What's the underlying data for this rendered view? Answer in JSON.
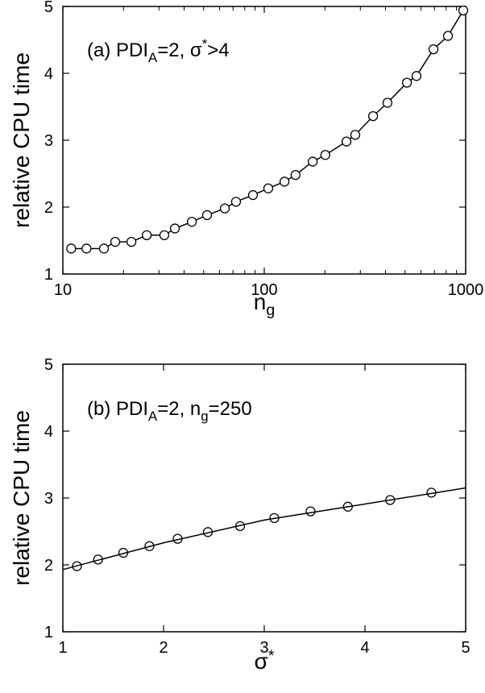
{
  "chart_data": [
    {
      "type": "line",
      "xscale": "log",
      "annotation": [
        {
          "text": "(a)  PDI"
        },
        {
          "text": "A",
          "style": "sub"
        },
        {
          "text": "=2,  σ"
        },
        {
          "text": "*",
          "style": "sup"
        },
        {
          "text": ">4"
        }
      ],
      "xlabel": [
        {
          "text": "n"
        },
        {
          "text": "g",
          "style": "sub"
        }
      ],
      "ylabel": "relative CPU time",
      "xlim": [
        10,
        1000
      ],
      "xticks": [
        10,
        100,
        1000
      ],
      "xminorticks": [
        20,
        30,
        40,
        50,
        60,
        70,
        80,
        90,
        200,
        300,
        400,
        500,
        600,
        700,
        800,
        900
      ],
      "ylim": [
        1,
        5
      ],
      "yticks": [
        1,
        2,
        3,
        4,
        5
      ],
      "series": [
        {
          "color": "#000000",
          "marker": "circle",
          "line": true,
          "x": [
            11,
            13.1,
            16,
            18.2,
            21.9,
            26.1,
            31.9,
            36,
            43.7,
            52,
            63.7,
            72.4,
            87.9,
            104.7,
            126,
            143,
            174,
            201,
            256,
            283,
            347,
            409,
            511,
            570,
            692,
            817,
            973
          ],
          "values": [
            1.38,
            1.38,
            1.38,
            1.48,
            1.48,
            1.58,
            1.58,
            1.68,
            1.78,
            1.88,
            1.98,
            2.08,
            2.18,
            2.28,
            2.38,
            2.48,
            2.68,
            2.78,
            2.98,
            3.08,
            3.36,
            3.56,
            3.86,
            3.96,
            4.36,
            4.56,
            4.94
          ]
        }
      ]
    },
    {
      "type": "line",
      "xscale": "linear",
      "annotation": [
        {
          "text": "(b)  PDI"
        },
        {
          "text": "A",
          "style": "sub"
        },
        {
          "text": "=2,  n"
        },
        {
          "text": "g",
          "style": "sub"
        },
        {
          "text": "=250"
        }
      ],
      "xlabel": [
        {
          "text": "σ"
        },
        {
          "text": "*",
          "style": "sup"
        }
      ],
      "ylabel": "relative CPU time",
      "xlim": [
        1,
        5
      ],
      "xticks": [
        1,
        2,
        3,
        4,
        5
      ],
      "xminorticks": [],
      "ylim": [
        1,
        5
      ],
      "yticks": [
        1,
        2,
        3,
        4,
        5
      ],
      "series": [
        {
          "color": "#000000",
          "marker": "circle",
          "line": false,
          "x": [
            1.14,
            1.35,
            1.6,
            1.86,
            2.14,
            2.44,
            2.76,
            3.1,
            3.46,
            3.83,
            4.25,
            4.66
          ],
          "values": [
            1.98,
            2.08,
            2.18,
            2.28,
            2.39,
            2.49,
            2.58,
            2.7,
            2.8,
            2.87,
            2.97,
            3.08
          ]
        },
        {
          "color": "#000000",
          "marker": "none",
          "line": true,
          "x": [
            1,
            2,
            3,
            4,
            5
          ],
          "values": [
            1.93,
            2.33,
            2.67,
            2.91,
            3.15
          ]
        }
      ]
    }
  ]
}
